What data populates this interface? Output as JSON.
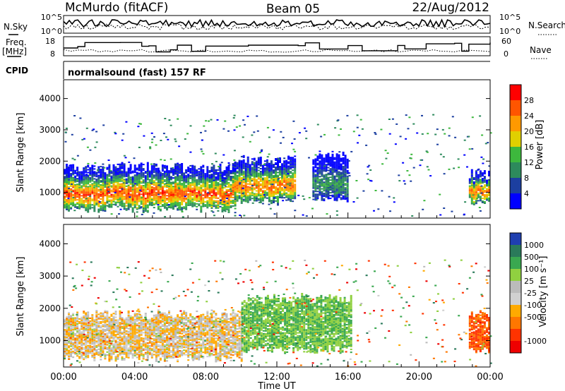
{
  "header": {
    "station": "McMurdo (fitACF)",
    "beam": "Beam 05",
    "date": "22/Aug/2012"
  },
  "noise_panel": {
    "left_label": "N.Sky",
    "right_label": "N.Search",
    "left_ticks": [
      "10^5",
      "10^0"
    ],
    "right_ticks": [
      "10^5",
      "10^0"
    ]
  },
  "freq_panel": {
    "left_label_1": "Freq.",
    "left_label_2": "[MHz]",
    "right_label": "Nave",
    "left_ticks": [
      "18",
      "8"
    ],
    "right_ticks": [
      "60",
      "0"
    ]
  },
  "cpid": {
    "label": "CPID",
    "value": "normalsound (fast) 157 RF"
  },
  "axes": {
    "x_ticks": [
      "00:00",
      "04:00",
      "08:00",
      "12:00",
      "16:00",
      "20:00",
      "00:00"
    ],
    "x_label": "Time UT",
    "y_label": "Slant Range [km]",
    "y_ticks": [
      "1000",
      "2000",
      "3000",
      "4000"
    ]
  },
  "colors": {
    "power": [
      "#0000ff",
      "#1c3fa0",
      "#2d8a5c",
      "#3db83d",
      "#e0d000",
      "#ff9900",
      "#ff5500",
      "#ff0000"
    ],
    "velocity": [
      "#1f3fb0",
      "#2a7a5a",
      "#3aa850",
      "#90d040",
      "#bbbbbb",
      "#d0d0d0",
      "#ffaa00",
      "#ff7700",
      "#ff3300",
      "#ee0000"
    ]
  },
  "chart_data": [
    {
      "type": "heatmap",
      "title": "",
      "xlabel": "Time UT",
      "ylabel": "Slant Range [km]",
      "xlim": [
        "00:00",
        "24:00"
      ],
      "ylim": [
        180,
        4600
      ],
      "colorbar": {
        "label": "Power [dB]",
        "ticks": [
          "4",
          "8",
          "12",
          "16",
          "20",
          "24",
          "28"
        ]
      },
      "echo_region_summary": [
        {
          "t_start": 0.0,
          "t_end": 9.6,
          "r_low": 450,
          "r_high": 1800,
          "peak_db": 30
        },
        {
          "t_start": 9.6,
          "t_end": 13.0,
          "r_low": 700,
          "r_high": 2000,
          "peak_db": 28
        },
        {
          "t_start": 14.0,
          "t_end": 16.0,
          "r_low": 800,
          "r_high": 2200,
          "peak_db": 14
        },
        {
          "t_start": 22.8,
          "t_end": 24.0,
          "r_low": 700,
          "r_high": 1600,
          "peak_db": 28
        }
      ]
    },
    {
      "type": "heatmap",
      "title": "",
      "xlabel": "Time UT",
      "ylabel": "Slant Range [km]",
      "xlim": [
        "00:00",
        "24:00"
      ],
      "ylim": [
        180,
        4600
      ],
      "colorbar": {
        "label": "Velocity [m s⁻¹]",
        "ticks": [
          "1000",
          "500",
          "100",
          "25",
          "-25",
          "-100",
          "-500",
          "-1000"
        ]
      },
      "echo_region_summary": [
        {
          "t_start": 0.0,
          "t_end": 10.0,
          "r_low": 450,
          "r_high": 1800,
          "velocity": 0
        },
        {
          "t_start": 10.0,
          "t_end": 16.2,
          "r_low": 700,
          "r_high": 2300,
          "velocity": 300
        },
        {
          "t_start": 22.8,
          "t_end": 24.0,
          "r_low": 700,
          "r_high": 1800,
          "velocity": -300
        }
      ]
    }
  ]
}
